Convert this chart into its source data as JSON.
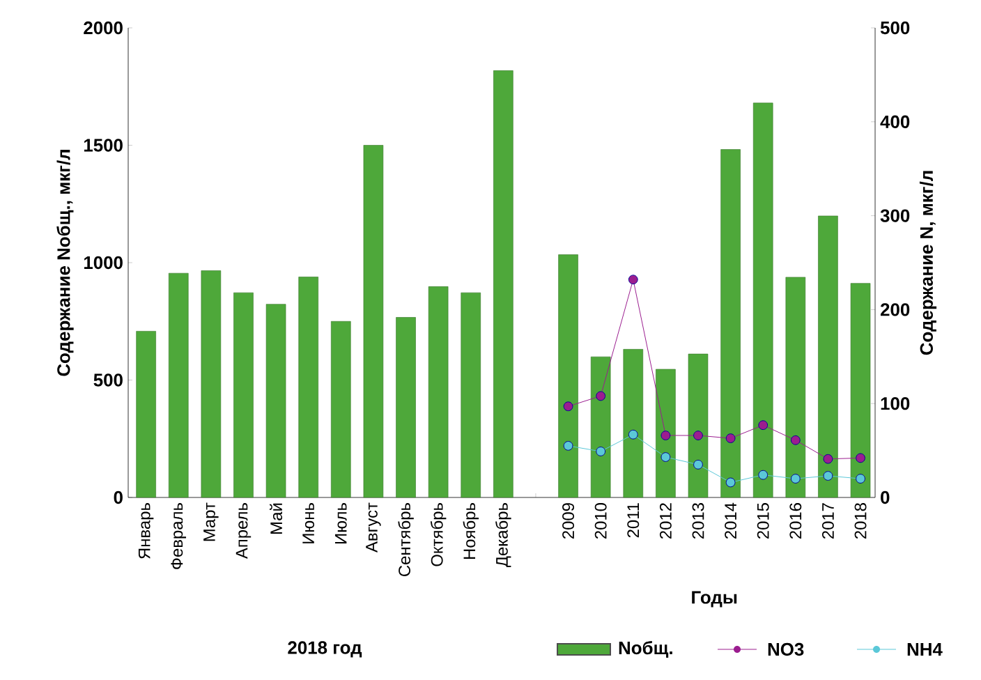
{
  "chart_data": {
    "type": "bar",
    "ylabel": "Содержание Nобщ., мкг/л",
    "y2label": "Содержание N, мкг/л",
    "xlabel": "Годы",
    "annotations": [
      "2018 год"
    ],
    "categories": [
      "Январь",
      "Февраль",
      "Март",
      "Апрель",
      "Май",
      "Июнь",
      "Июль",
      "Август",
      "Сентябрь",
      "Октябрь",
      "Ноябрь",
      "Декабрь",
      null,
      "2009",
      "2010",
      "2011",
      "2012",
      "2013",
      "2014",
      "2015",
      "2016",
      "2017",
      "2018"
    ],
    "series": [
      {
        "name": "Nобщ.",
        "color": "#4ea83a",
        "values": [
          708,
          955,
          966,
          872,
          823,
          939,
          750,
          1500,
          767,
          898,
          872,
          1818,
          null,
          1034,
          599,
          631,
          546,
          611,
          1482,
          1680,
          938,
          1199,
          912
        ]
      },
      {
        "name": "NO3",
        "type": "line",
        "axis": "y2",
        "color": "#9b1d8f",
        "values": [
          null,
          null,
          null,
          null,
          null,
          null,
          null,
          null,
          null,
          null,
          null,
          null,
          null,
          97,
          108,
          232,
          66,
          66,
          63,
          77,
          61,
          41,
          42
        ]
      },
      {
        "name": "NH4",
        "type": "line",
        "axis": "y2",
        "color": "#5bc8d8",
        "values": [
          null,
          null,
          null,
          null,
          null,
          null,
          null,
          null,
          null,
          null,
          null,
          null,
          null,
          55,
          49,
          67,
          43,
          35,
          16,
          24,
          20,
          23,
          20
        ]
      }
    ],
    "ylim": [
      0,
      2000
    ],
    "yticks": [
      0,
      500,
      1000,
      1500,
      2000
    ],
    "y2lim": [
      0,
      500
    ],
    "y2ticks": [
      0,
      100,
      200,
      300,
      400,
      500
    ],
    "marker": "circle",
    "line_style": "solid",
    "legend": "bottom",
    "grid": false
  }
}
